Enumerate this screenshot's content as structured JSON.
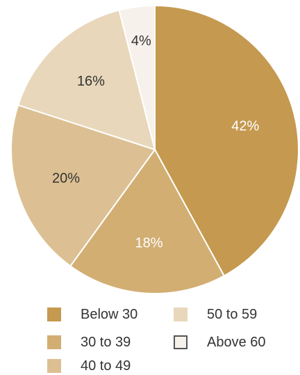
{
  "chart_data": {
    "type": "pie",
    "title": "",
    "slices": [
      {
        "label": "Below 30",
        "value": 42,
        "display": "42%",
        "color": "#C5994F"
      },
      {
        "label": "30 to 39",
        "value": 18,
        "display": "18%",
        "color": "#D2AE73"
      },
      {
        "label": "40 to 49",
        "value": 20,
        "display": "20%",
        "color": "#DCC093"
      },
      {
        "label": "50 to 59",
        "value": 16,
        "display": "16%",
        "color": "#E8D7BA"
      },
      {
        "label": "Above 60",
        "value": 4,
        "display": "4%",
        "color": "#F6F1EA"
      }
    ],
    "start": "12 o'clock",
    "direction": "clockwise",
    "legend": {
      "position": "bottom",
      "columns": 2
    }
  },
  "colors": {
    "background": "#FFFFFF",
    "slice_border": "#FFFFFF",
    "label_light": "#FFFFFF",
    "label_dark": "#333333",
    "above60_swatch_border": "#555555"
  }
}
